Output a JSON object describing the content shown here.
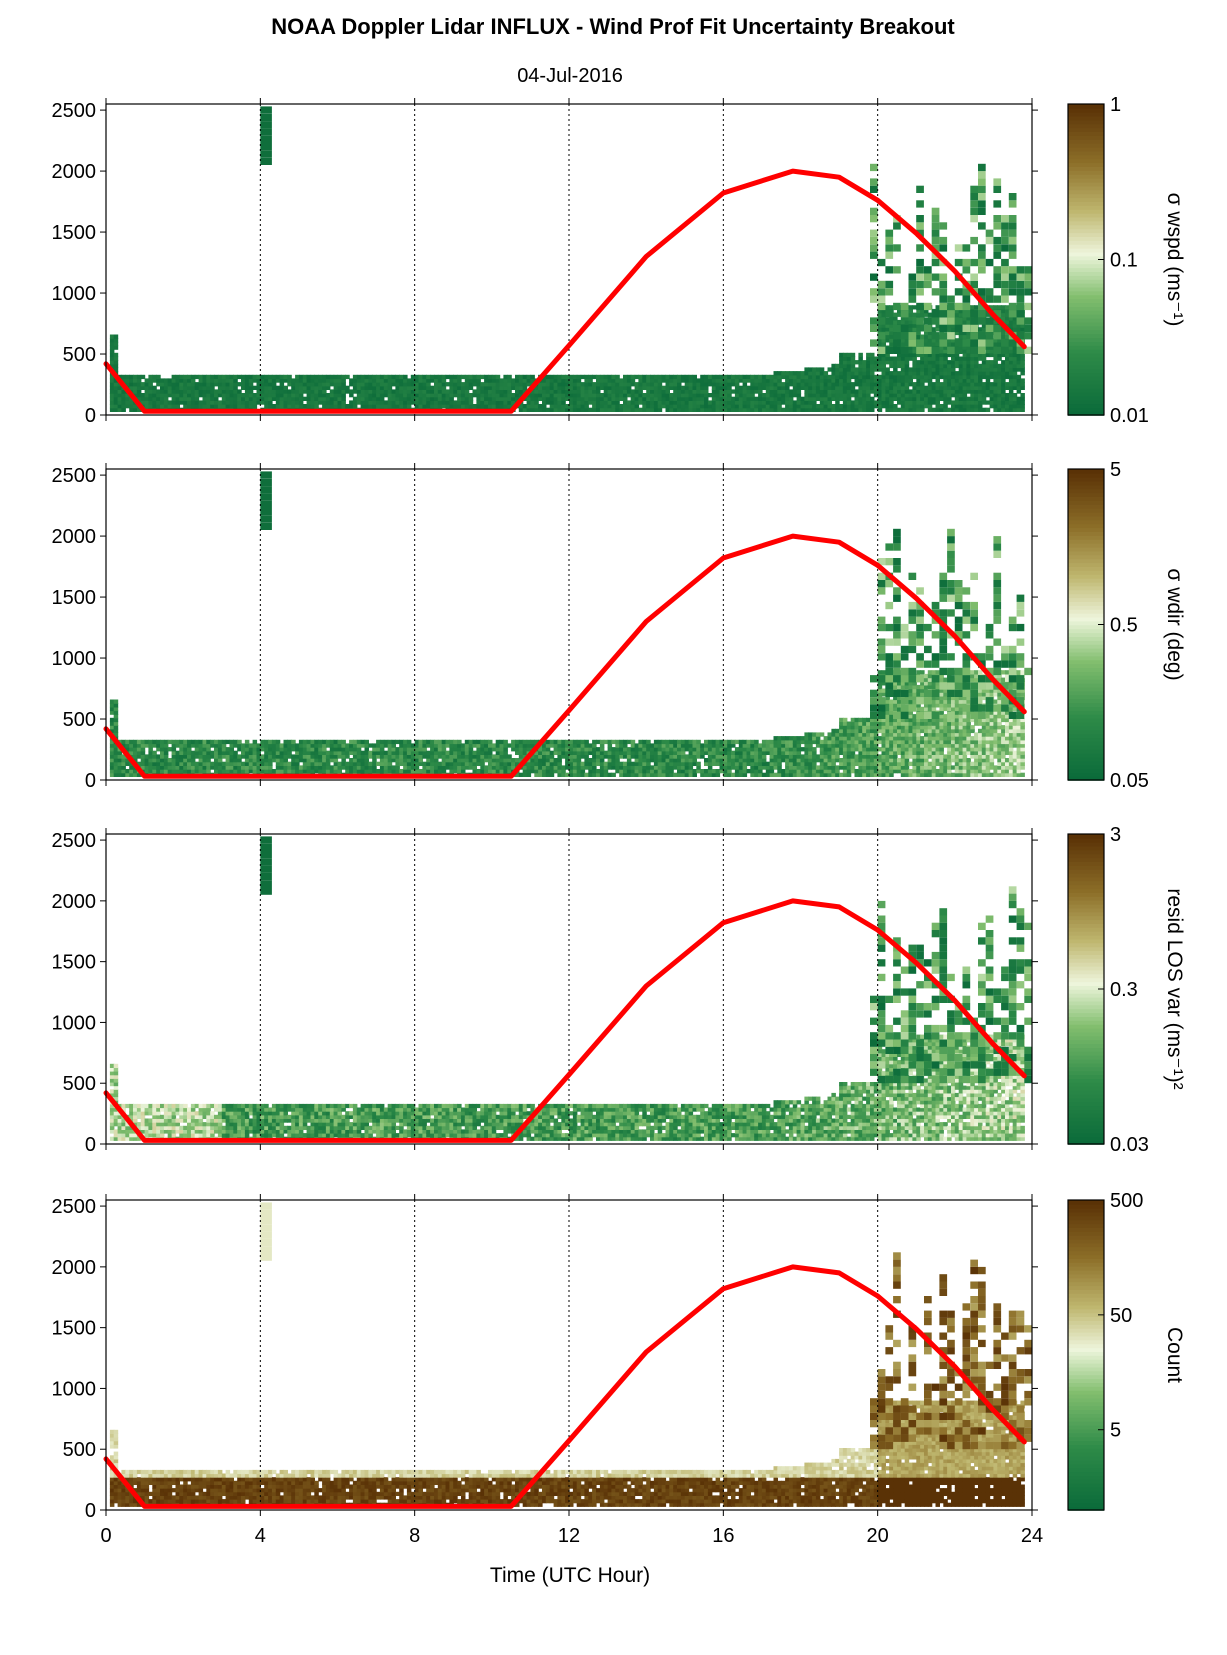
{
  "title": "NOAA Doppler Lidar INFLUX - Wind Prof Fit Uncertainty Breakout",
  "subtitle": "04-Jul-2016",
  "colors": {
    "sun_curve": "#ff0000",
    "colormap_low": "#0b6b3a",
    "colormap_mid": "#eef5dc",
    "colormap_high": "#5a3206"
  },
  "chart_data": [
    {
      "type": "heatmap",
      "xlabel": "",
      "ylabel": "",
      "xlim": [
        0,
        24
      ],
      "ylim": [
        0,
        2550
      ],
      "x_ticks": [
        "0",
        "4",
        "8",
        "12",
        "16",
        "20",
        "24"
      ],
      "y_ticks": [
        "0",
        "500",
        "1000",
        "1500",
        "2000",
        "2500"
      ],
      "grid": "vertical dotted lines at 4, 8, 12, 16, 20",
      "colorbar": {
        "label": "σ wspd (ms⁻¹)",
        "scale": "log",
        "range": [
          0.01,
          1
        ],
        "ticks": [
          "0.01",
          "0.1",
          "1"
        ]
      },
      "overlay_line": {
        "x": [
          0,
          1,
          10.5,
          12,
          14,
          16,
          17.8,
          19,
          20,
          21,
          22,
          23,
          23.8
        ],
        "y": [
          420,
          30,
          30,
          570,
          1300,
          1820,
          2000,
          1950,
          1760,
          1490,
          1180,
          820,
          560
        ]
      }
    },
    {
      "type": "heatmap",
      "xlabel": "",
      "ylabel": "",
      "xlim": [
        0,
        24
      ],
      "ylim": [
        0,
        2550
      ],
      "x_ticks": [
        "0",
        "4",
        "8",
        "12",
        "16",
        "20",
        "24"
      ],
      "y_ticks": [
        "0",
        "500",
        "1000",
        "1500",
        "2000",
        "2500"
      ],
      "grid": "vertical dotted lines at 4, 8, 12, 16, 20",
      "colorbar": {
        "label": "σ wdir (deg)",
        "scale": "log",
        "range": [
          0.05,
          5
        ],
        "ticks": [
          "0.05",
          "0.5",
          "5"
        ]
      },
      "overlay_line": {
        "x": [
          0,
          1,
          10.5,
          12,
          14,
          16,
          17.8,
          19,
          20,
          21,
          22,
          23,
          23.8
        ],
        "y": [
          420,
          30,
          30,
          570,
          1300,
          1820,
          2000,
          1950,
          1760,
          1490,
          1180,
          820,
          560
        ]
      }
    },
    {
      "type": "heatmap",
      "xlabel": "",
      "ylabel": "",
      "xlim": [
        0,
        24
      ],
      "ylim": [
        0,
        2550
      ],
      "x_ticks": [
        "0",
        "4",
        "8",
        "12",
        "16",
        "20",
        "24"
      ],
      "y_ticks": [
        "0",
        "500",
        "1000",
        "1500",
        "2000",
        "2500"
      ],
      "grid": "vertical dotted lines at 4, 8, 12, 16, 20",
      "colorbar": {
        "label": "resid LOS var (ms⁻¹)²",
        "scale": "log",
        "range": [
          0.03,
          3
        ],
        "ticks": [
          "0.03",
          "0.3",
          "3"
        ]
      },
      "overlay_line": {
        "x": [
          0,
          1,
          10.5,
          12,
          14,
          16,
          17.8,
          19,
          20,
          21,
          22,
          23,
          23.8
        ],
        "y": [
          420,
          30,
          30,
          570,
          1300,
          1820,
          2000,
          1950,
          1760,
          1490,
          1180,
          820,
          560
        ]
      }
    },
    {
      "type": "heatmap",
      "xlabel": "Time (UTC Hour)",
      "ylabel": "",
      "xlim": [
        0,
        24
      ],
      "ylim": [
        0,
        2550
      ],
      "x_ticks": [
        "0",
        "4",
        "8",
        "12",
        "16",
        "20",
        "24"
      ],
      "y_ticks": [
        "0",
        "500",
        "1000",
        "1500",
        "2000",
        "2500"
      ],
      "grid": "vertical dotted lines at 4, 8, 12, 16, 20",
      "colorbar": {
        "label": "Count",
        "scale": "log",
        "range": [
          1,
          500
        ],
        "ticks": [
          "5",
          "50",
          "500"
        ]
      },
      "overlay_line": {
        "x": [
          0,
          1,
          10.5,
          12,
          14,
          16,
          17.8,
          19,
          20,
          21,
          22,
          23,
          23.8
        ],
        "y": [
          420,
          30,
          30,
          570,
          1300,
          1820,
          2000,
          1950,
          1760,
          1490,
          1180,
          820,
          560
        ]
      }
    }
  ]
}
